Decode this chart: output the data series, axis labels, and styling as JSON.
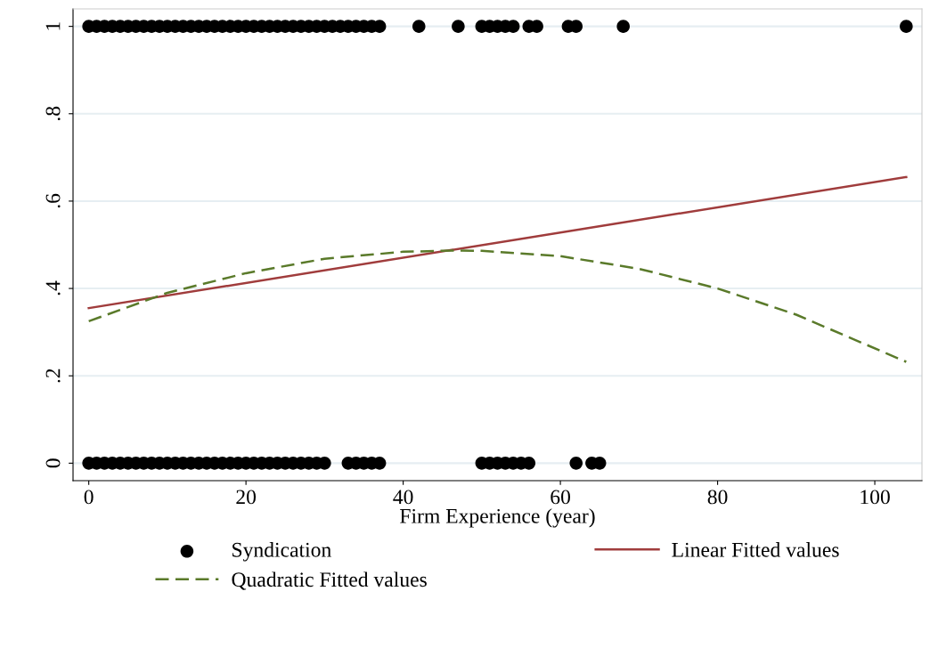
{
  "chart_data": {
    "type": "scatter",
    "xlabel": "Firm Experience (year)",
    "xlim": [
      -2,
      106
    ],
    "ylim": [
      -0.04,
      1.04
    ],
    "xticks": [
      0,
      20,
      40,
      60,
      80,
      100
    ],
    "yticks": [
      {
        "value": 0,
        "label": "0"
      },
      {
        "value": 0.2,
        "label": ".2"
      },
      {
        "value": 0.4,
        "label": ".4"
      },
      {
        "value": 0.6,
        "label": ".6"
      },
      {
        "value": 0.8,
        "label": ".8"
      },
      {
        "value": 1,
        "label": "1"
      }
    ],
    "grid": "y",
    "legend": "bottom",
    "series": [
      {
        "name": "Syndication",
        "type": "scatter",
        "marker": "circle",
        "color": "#000000",
        "x": [
          0,
          1,
          2,
          3,
          4,
          5,
          6,
          7,
          8,
          9,
          10,
          11,
          12,
          13,
          14,
          15,
          16,
          17,
          18,
          19,
          20,
          21,
          22,
          23,
          24,
          25,
          26,
          27,
          28,
          29,
          30,
          31,
          32,
          33,
          34,
          35,
          36,
          37,
          42,
          47,
          50,
          51,
          52,
          53,
          54,
          56,
          57,
          61,
          62,
          68,
          104,
          0,
          1,
          2,
          3,
          4,
          5,
          6,
          7,
          8,
          9,
          10,
          11,
          12,
          13,
          14,
          15,
          16,
          17,
          18,
          19,
          20,
          21,
          22,
          23,
          24,
          25,
          26,
          27,
          28,
          29,
          30,
          33,
          34,
          35,
          36,
          37,
          50,
          51,
          52,
          53,
          54,
          55,
          56,
          62,
          64,
          65
        ],
        "values": [
          1,
          1,
          1,
          1,
          1,
          1,
          1,
          1,
          1,
          1,
          1,
          1,
          1,
          1,
          1,
          1,
          1,
          1,
          1,
          1,
          1,
          1,
          1,
          1,
          1,
          1,
          1,
          1,
          1,
          1,
          1,
          1,
          1,
          1,
          1,
          1,
          1,
          1,
          1,
          1,
          1,
          1,
          1,
          1,
          1,
          1,
          1,
          1,
          1,
          1,
          1,
          0,
          0,
          0,
          0,
          0,
          0,
          0,
          0,
          0,
          0,
          0,
          0,
          0,
          0,
          0,
          0,
          0,
          0,
          0,
          0,
          0,
          0,
          0,
          0,
          0,
          0,
          0,
          0,
          0,
          0,
          0,
          0,
          0,
          0,
          0,
          0,
          0,
          0,
          0,
          0,
          0,
          0,
          0,
          0,
          0,
          0
        ]
      },
      {
        "name": "Linear Fitted values",
        "type": "line",
        "line_style": "solid",
        "color": "#a03c3c",
        "x": [
          0,
          104
        ],
        "values": [
          0.355,
          0.655
        ]
      },
      {
        "name": "Quadratic Fitted values",
        "type": "line",
        "line_style": "dashed",
        "color": "#5a7a2a",
        "x": [
          0,
          10,
          20,
          30,
          40,
          47,
          50,
          60,
          70,
          80,
          90,
          104
        ],
        "values": [
          0.325,
          0.39,
          0.435,
          0.468,
          0.484,
          0.487,
          0.486,
          0.474,
          0.445,
          0.4,
          0.34,
          0.232
        ]
      }
    ]
  }
}
